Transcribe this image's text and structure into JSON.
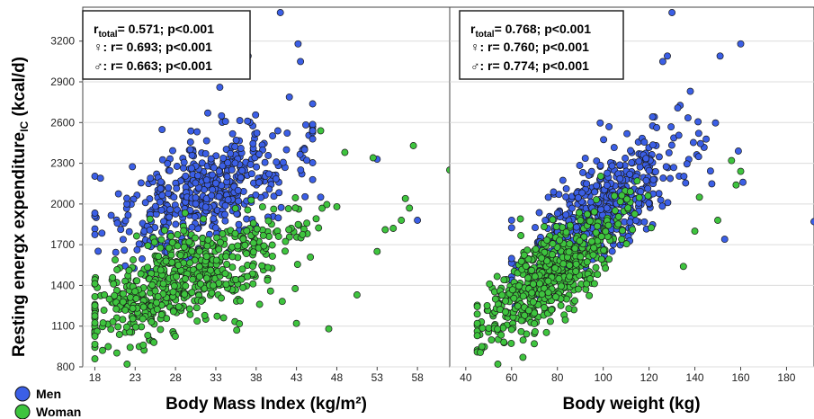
{
  "colors": {
    "men": "#3b5fe6",
    "woman": "#3ec43e",
    "grid": "#dcdcdc",
    "frame": "#444444"
  },
  "ylabel": {
    "main": "Resting energx expenditure",
    "sub": "IC",
    "unit": " (kcal/d)"
  },
  "legend": {
    "men": "Men",
    "woman": "Woman"
  },
  "chart_data": [
    {
      "type": "scatter",
      "xlabel": "Body Mass Index (kg/m²)",
      "xlim": [
        16.5,
        62
      ],
      "ylim": [
        800,
        3450
      ],
      "xticks": [
        18,
        23,
        28,
        33,
        38,
        43,
        48,
        53,
        58
      ],
      "yticks": [
        800,
        1100,
        1400,
        1700,
        2000,
        2300,
        2600,
        2900,
        3200
      ],
      "grid": "horizontal",
      "stats": {
        "total_label": "total",
        "total_text": "= 0.571; p<0.001",
        "female": "♀: r= 0.693; p<0.001",
        "male": "♂: r= 0.663; p<0.001"
      },
      "series": [
        {
          "name": "Men",
          "model": {
            "x_mean": 31,
            "x_sd": 6.2,
            "x_min": 18,
            "x_max": 45,
            "intercept": 1335,
            "slope": 24,
            "noise": 210,
            "n": 480
          },
          "extra": [
            [
              41,
              3410
            ],
            [
              43.2,
              3180
            ],
            [
              43.5,
              3050
            ],
            [
              37,
              3090
            ],
            [
              33.5,
              2860
            ],
            [
              32,
              2670
            ],
            [
              18.7,
              2190
            ],
            [
              58,
              1880
            ],
            [
              46,
              2050
            ],
            [
              45,
              2540
            ],
            [
              44,
              2400
            ],
            [
              53,
              2330
            ]
          ]
        },
        {
          "name": "Woman",
          "model": {
            "x_mean": 29,
            "x_sd": 7.2,
            "x_min": 18,
            "x_max": 52,
            "intercept": 772,
            "slope": 23,
            "noise": 170,
            "n": 560
          },
          "extra": [
            [
              62,
              2250
            ],
            [
              57.5,
              2430
            ],
            [
              56.5,
              2040
            ],
            [
              57,
              1970
            ],
            [
              56,
              1880
            ],
            [
              55,
              1820
            ],
            [
              52.5,
              2340
            ],
            [
              53,
              1650
            ],
            [
              50.5,
              1330
            ],
            [
              47,
              1080
            ],
            [
              43,
              1120
            ],
            [
              22,
              820
            ],
            [
              23.5,
              950
            ],
            [
              24,
              960
            ],
            [
              49,
              2380
            ],
            [
              46,
              2540
            ],
            [
              48,
              1980
            ],
            [
              54,
              1810
            ]
          ]
        }
      ]
    },
    {
      "type": "scatter",
      "xlabel": "Body weight (kg)",
      "xlim": [
        33,
        192
      ],
      "ylim": [
        800,
        3450
      ],
      "xticks": [
        40,
        60,
        80,
        100,
        120,
        140,
        160,
        180
      ],
      "yticks": [
        800,
        1100,
        1400,
        1700,
        2000,
        2300,
        2600,
        2900,
        3200
      ],
      "grid": "horizontal",
      "stats": {
        "total_label": "total",
        "total_text": "= 0.768; p<0.001",
        "female": "♀: r= 0.760; p<0.001",
        "male": "♂: r= 0.774; p<0.001"
      },
      "series": [
        {
          "name": "Men",
          "model": {
            "x_mean": 100,
            "x_sd": 19,
            "x_min": 60,
            "x_max": 150,
            "intercept": 810,
            "slope": 11.8,
            "noise": 190,
            "n": 480
          },
          "extra": [
            [
              130,
              3410
            ],
            [
              160,
              3180
            ],
            [
              128,
              3090
            ],
            [
              151,
              3090
            ],
            [
              126,
              3050
            ],
            [
              192,
              1870
            ],
            [
              153,
              1740
            ],
            [
              161,
              2160
            ],
            [
              159,
              2390
            ],
            [
              138,
              2830
            ]
          ]
        },
        {
          "name": "Woman",
          "model": {
            "x_mean": 77,
            "x_sd": 17,
            "x_min": 45,
            "x_max": 150,
            "intercept": 570,
            "slope": 11.6,
            "noise": 150,
            "n": 560
          },
          "extra": [
            [
              54,
              820
            ],
            [
              45,
              1030
            ],
            [
              47,
              950
            ],
            [
              160,
              2240
            ],
            [
              156,
              2320
            ],
            [
              158,
              2140
            ],
            [
              150,
              1880
            ],
            [
              140,
              1800
            ],
            [
              135,
              1540
            ],
            [
              142,
              2050
            ]
          ]
        }
      ]
    }
  ]
}
